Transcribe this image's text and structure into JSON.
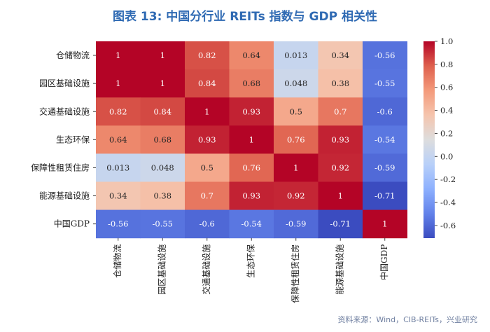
{
  "title": "图表 13: 中国分行业 REITs 指数与 GDP 相关性",
  "source": "资料来源：Wind，CIB-REITs，兴业研究",
  "chart_data": {
    "type": "heatmap",
    "title": "图表 13: 中国分行业 REITs 指数与 GDP 相关性",
    "row_labels": [
      "仓储物流",
      "园区基础设施",
      "交通基础设施",
      "生态环保",
      "保障性租赁住房",
      "能源基础设施",
      "中国GDP"
    ],
    "col_labels": [
      "仓储物流",
      "园区基础设施",
      "交通基础设施",
      "生态环保",
      "保障性租赁住房",
      "能源基础设施",
      "中国GDP"
    ],
    "values": [
      [
        1,
        1,
        0.82,
        0.64,
        0.013,
        0.34,
        -0.56
      ],
      [
        1,
        1,
        0.84,
        0.68,
        0.048,
        0.38,
        -0.55
      ],
      [
        0.82,
        0.84,
        1,
        0.93,
        0.5,
        0.7,
        -0.6
      ],
      [
        0.64,
        0.68,
        0.93,
        1,
        0.76,
        0.93,
        -0.54
      ],
      [
        0.013,
        0.048,
        0.5,
        0.76,
        1,
        0.92,
        -0.59
      ],
      [
        0.34,
        0.38,
        0.7,
        0.93,
        0.92,
        1,
        -0.71
      ],
      [
        -0.56,
        -0.55,
        -0.6,
        -0.54,
        -0.59,
        -0.71,
        1
      ]
    ],
    "colorbar": {
      "range": [
        -0.71,
        1.0
      ],
      "ticks": [
        1.0,
        0.8,
        0.6,
        0.4,
        0.2,
        0.0,
        -0.2,
        -0.4,
        -0.6
      ],
      "tick_labels": [
        "1.0",
        "0.8",
        "0.6",
        "0.4",
        "0.2",
        "0.0",
        "-0.2",
        "-0.4",
        "-0.6"
      ],
      "colormap": "coolwarm"
    }
  }
}
